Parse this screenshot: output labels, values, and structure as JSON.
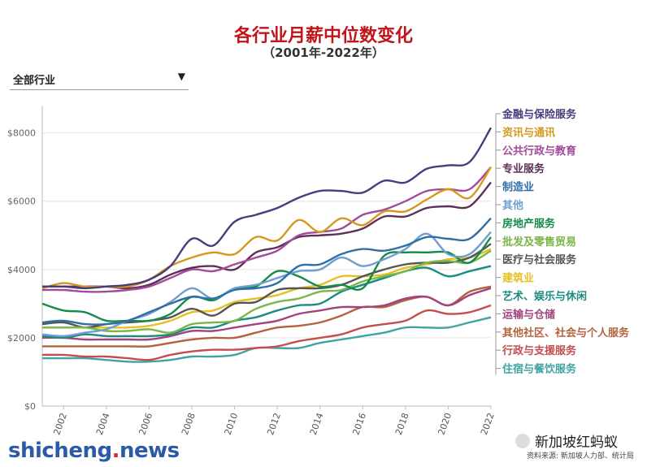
{
  "title": "各行业月薪中位数变化",
  "subtitle": "（2001年-2022年）",
  "filter": {
    "selected": "全部行业"
  },
  "watermark": {
    "part1": "shicheng",
    "part2": ".",
    "part3": "news"
  },
  "brand": {
    "name": "新加坡红蚂蚁",
    "source": "资料来源: 新加坡人力部、统计局"
  },
  "chart_data": {
    "type": "line",
    "x": [
      2001,
      2002,
      2003,
      2004,
      2005,
      2006,
      2007,
      2008,
      2009,
      2010,
      2011,
      2012,
      2013,
      2014,
      2015,
      2016,
      2017,
      2018,
      2019,
      2020,
      2021,
      2022
    ],
    "x_ticks": [
      "2002",
      "2004",
      "2006",
      "2008",
      "2010",
      "2012",
      "2014",
      "2016",
      "2018",
      "2020",
      "2022"
    ],
    "y_ticks": [
      "$0",
      "$2000",
      "$4000",
      "$6000",
      "$8000"
    ],
    "ylim": [
      0,
      8800
    ],
    "grid": "horizontal",
    "legend": "right",
    "series": [
      {
        "name": "金融与保险服务",
        "color": "#4a3b7c",
        "values": [
          3500,
          3500,
          3450,
          3500,
          3550,
          3700,
          4100,
          4900,
          4700,
          5400,
          5600,
          5800,
          6100,
          6300,
          6300,
          6250,
          6600,
          6550,
          6950,
          7050,
          7150,
          8150
        ]
      },
      {
        "name": "资讯与通讯",
        "color": "#d4981e",
        "values": [
          3450,
          3600,
          3500,
          3500,
          3500,
          3700,
          4100,
          4350,
          4500,
          4450,
          4950,
          4850,
          5450,
          5100,
          5500,
          5300,
          5700,
          5700,
          6050,
          6350,
          6100,
          7000
        ]
      },
      {
        "name": "公共行政与教育",
        "color": "#a34a9b",
        "values": [
          3400,
          3400,
          3350,
          3350,
          3400,
          3500,
          3750,
          4000,
          3950,
          4150,
          4350,
          4550,
          5000,
          5100,
          5200,
          5600,
          5750,
          6000,
          6300,
          6350,
          6350,
          7000
        ]
      },
      {
        "name": "专业服务",
        "color": "#5e2f59",
        "values": [
          3500,
          3500,
          3500,
          3500,
          3450,
          3550,
          3850,
          4050,
          4100,
          4000,
          4500,
          4650,
          4950,
          5000,
          5050,
          5200,
          5550,
          5550,
          5800,
          5850,
          5850,
          6550
        ]
      },
      {
        "name": "制造业",
        "color": "#2e6fa6",
        "values": [
          2450,
          2500,
          2400,
          2400,
          2500,
          2750,
          3000,
          3200,
          3150,
          3400,
          3450,
          3600,
          4100,
          4150,
          4450,
          4600,
          4550,
          4700,
          4950,
          4900,
          4900,
          5500
        ]
      },
      {
        "name": "其他",
        "color": "#6f9ed0",
        "values": [
          2100,
          2050,
          2150,
          2250,
          2500,
          2700,
          3050,
          3450,
          3150,
          3450,
          3550,
          3750,
          3950,
          4000,
          4350,
          4100,
          4300,
          4600,
          5050,
          4450,
          4450,
          5100
        ]
      },
      {
        "name": "房地产服务",
        "color": "#148a4a",
        "values": [
          3000,
          2800,
          2750,
          2500,
          2500,
          2500,
          2700,
          3200,
          3100,
          3450,
          3500,
          3950,
          3800,
          3500,
          3550,
          3450,
          4400,
          4500,
          4500,
          4500,
          4200,
          4950
        ]
      },
      {
        "name": "批发及零售贸易",
        "color": "#7ab648",
        "values": [
          2300,
          2300,
          2300,
          2200,
          2200,
          2250,
          2150,
          2400,
          2450,
          2500,
          2850,
          3050,
          3150,
          3350,
          3400,
          3650,
          3800,
          3950,
          4200,
          4250,
          4200,
          4550
        ]
      },
      {
        "name": "医疗与社会服务",
        "color": "#555555",
        "values": [
          2400,
          2450,
          2300,
          2400,
          2450,
          2500,
          2600,
          2850,
          2650,
          3000,
          3050,
          3400,
          3450,
          3450,
          3550,
          3800,
          4000,
          4150,
          4200,
          4200,
          4350,
          4750
        ]
      },
      {
        "name": "建筑业",
        "color": "#e6c021",
        "values": [
          2300,
          2300,
          2300,
          2300,
          2300,
          2350,
          2500,
          2750,
          2800,
          3050,
          3150,
          3250,
          3450,
          3550,
          3800,
          3800,
          3850,
          4050,
          4150,
          4300,
          4350,
          4600
        ]
      },
      {
        "name": "艺术、娱乐与休闲",
        "color": "#1c8b80",
        "values": [
          2050,
          2000,
          2100,
          2050,
          2050,
          2050,
          2100,
          2300,
          2300,
          2500,
          2600,
          2800,
          2950,
          3000,
          3350,
          3550,
          3750,
          3950,
          4050,
          3800,
          3950,
          4100
        ]
      },
      {
        "name": "运输与仓储",
        "color": "#a0437e",
        "values": [
          2000,
          2000,
          1950,
          1950,
          1950,
          1950,
          2050,
          2200,
          2200,
          2300,
          2400,
          2500,
          2700,
          2800,
          2900,
          2900,
          2950,
          3150,
          3200,
          2950,
          3250,
          3450
        ]
      },
      {
        "name": "其他社区、社会与个人服务",
        "color": "#b3633c",
        "values": [
          1750,
          1750,
          1750,
          1750,
          1750,
          1750,
          1850,
          1950,
          2000,
          2000,
          2150,
          2300,
          2350,
          2450,
          2650,
          2900,
          2900,
          3100,
          3200,
          2950,
          3350,
          3500
        ]
      },
      {
        "name": "行政与支援服务",
        "color": "#c44d4d",
        "values": [
          1500,
          1500,
          1450,
          1450,
          1400,
          1350,
          1500,
          1600,
          1650,
          1650,
          1700,
          1750,
          1900,
          2000,
          2100,
          2300,
          2400,
          2500,
          2800,
          2700,
          2750,
          2950
        ]
      },
      {
        "name": "住宿与餐饮服务",
        "color": "#3fa3a3",
        "values": [
          1400,
          1400,
          1400,
          1350,
          1300,
          1300,
          1350,
          1450,
          1450,
          1500,
          1700,
          1700,
          1700,
          1850,
          1950,
          2050,
          2150,
          2300,
          2300,
          2300,
          2450,
          2600
        ]
      }
    ]
  }
}
